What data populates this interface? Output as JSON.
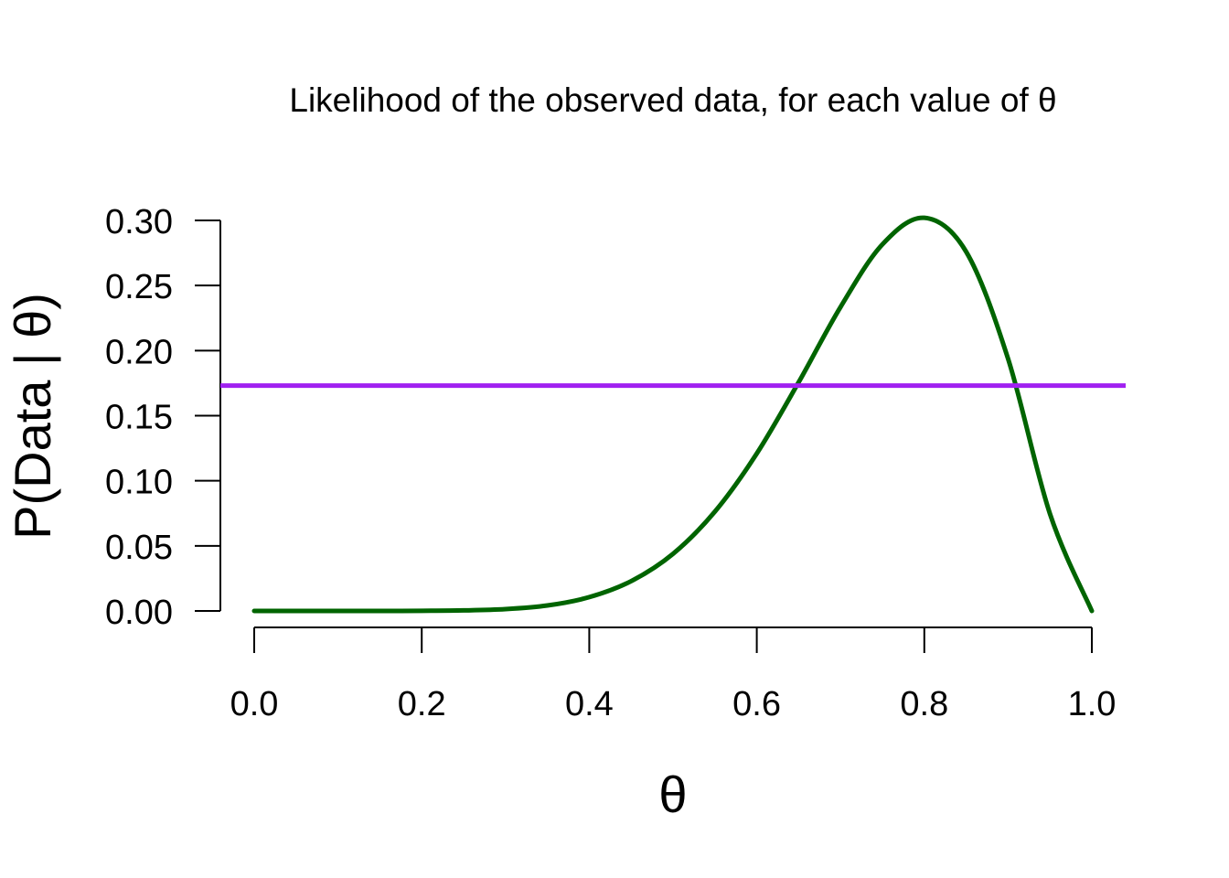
{
  "chart_data": {
    "type": "line",
    "title": "Likelihood of the observed data, for each value of θ",
    "xlabel": "θ",
    "ylabel": "P(Data | θ)",
    "xlim": [
      0,
      1
    ],
    "ylim": [
      0,
      0.3
    ],
    "x_ticks": [
      "0.0",
      "0.2",
      "0.4",
      "0.6",
      "0.8",
      "1.0"
    ],
    "y_ticks": [
      "0.00",
      "0.05",
      "0.10",
      "0.15",
      "0.20",
      "0.25",
      "0.30"
    ],
    "grid": false,
    "legend": "none",
    "series": [
      {
        "color": "#006400",
        "x": [
          0.0,
          0.05,
          0.1,
          0.15,
          0.2,
          0.25,
          0.3,
          0.35,
          0.4,
          0.45,
          0.5,
          0.55,
          0.6,
          0.65,
          0.7,
          0.75,
          0.8,
          0.85,
          0.9,
          0.95,
          1.0
        ],
        "y": [
          0.0,
          0.0,
          0.0,
          0.0,
          0.0001,
          0.0004,
          0.0014,
          0.0042,
          0.0106,
          0.0229,
          0.0439,
          0.0763,
          0.1209,
          0.1757,
          0.2335,
          0.2816,
          0.302,
          0.2759,
          0.1937,
          0.0746,
          0.0
        ]
      },
      {
        "color": "#a020f0",
        "x": [
          0.0,
          1.0
        ],
        "y": [
          0.1731,
          0.1731
        ]
      }
    ]
  }
}
